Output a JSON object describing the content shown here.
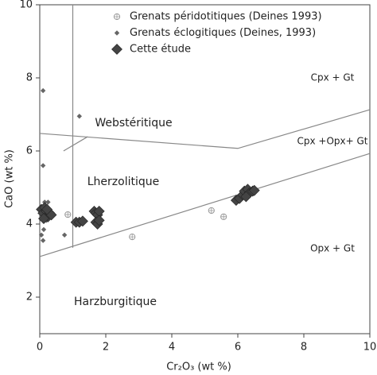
{
  "chart_data": {
    "type": "scatter",
    "xlabel": "Cr₂O₃ (wt %)",
    "ylabel": "CaO (wt %)",
    "xlim": [
      0,
      10
    ],
    "ylim": [
      1,
      10
    ],
    "xticks": [
      0,
      2,
      4,
      6,
      8,
      10
    ],
    "yticks": [
      2,
      4,
      6,
      8,
      10
    ],
    "series": [
      {
        "name": "Grenats péridotitiques (Deines 1993)",
        "color": "#999999",
        "marker": "circled-plus",
        "x": [
          0.85,
          2.8,
          5.2,
          5.57
        ],
        "values": [
          4.26,
          3.65,
          4.37,
          4.2
        ]
      },
      {
        "name": "Grenats éclogitiques  (Deines, 1993)",
        "color": "#666666",
        "marker": "small-diamond",
        "x": [
          0.1,
          0.1,
          1.2,
          0.15,
          0.25,
          0.2,
          0.05,
          0.1,
          0.12,
          0.75,
          0.3,
          0.15
        ],
        "values": [
          7.65,
          5.6,
          6.95,
          4.6,
          4.6,
          4.1,
          3.7,
          3.55,
          3.85,
          3.7,
          4.2,
          4.5
        ]
      },
      {
        "name": "Cette étude",
        "color": "#444444",
        "marker": "large-diamond",
        "x": [
          0.05,
          0.1,
          0.15,
          0.2,
          0.25,
          0.3,
          0.35,
          0.12,
          0.22,
          1.1,
          1.2,
          1.3,
          1.65,
          1.7,
          1.75,
          1.8,
          1.7,
          1.75,
          1.8,
          5.95,
          6.05,
          6.15,
          6.2,
          6.3,
          6.35,
          6.45,
          6.5,
          6.25
        ],
        "values": [
          4.4,
          4.3,
          4.45,
          4.35,
          4.2,
          4.3,
          4.25,
          4.15,
          4.4,
          4.05,
          4.05,
          4.08,
          4.35,
          4.3,
          4.25,
          4.35,
          4.05,
          4.0,
          4.1,
          4.65,
          4.7,
          4.8,
          4.9,
          4.95,
          4.85,
          4.9,
          4.92,
          4.75
        ]
      }
    ],
    "lines": [
      {
        "color": "#888888",
        "x": [
          1,
          1
        ],
        "y": [
          10,
          3.35
        ]
      },
      {
        "color": "#888888",
        "x": [
          0,
          6,
          10
        ],
        "y": [
          6.48,
          6.07,
          7.13
        ]
      },
      {
        "color": "#888888",
        "x": [
          0,
          10
        ],
        "y": [
          3.11,
          5.93
        ]
      },
      {
        "color": "#888888",
        "x": [
          0.72,
          1.45
        ],
        "y": [
          6.0,
          6.39
        ]
      }
    ],
    "annotations": [
      "Cpx + Gt",
      "Cpx +Opx+ Gt",
      "Opx + Gt",
      "Webstéritique",
      "Lherzolitique",
      "Harzburgitique"
    ]
  }
}
